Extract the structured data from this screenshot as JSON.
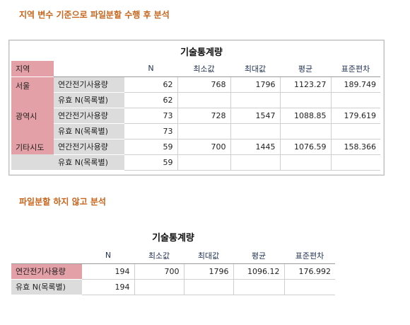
{
  "heading1": "지역 변수 기준으로 파일분할 수행 후 분석",
  "heading2": "파일분할 하지 않고 분석",
  "table1": {
    "title": "기술통계량",
    "region_header": "지역",
    "columns": [
      "N",
      "최소값",
      "최대값",
      "평균",
      "표준편차"
    ],
    "groups": [
      {
        "region": "서울",
        "rows": [
          {
            "label": "연간전기사용량",
            "values": [
              "62",
              "768",
              "1796",
              "1123.27",
              "189.749"
            ]
          },
          {
            "label": "유효 N(목록별)",
            "values": [
              "62",
              "",
              "",
              "",
              ""
            ]
          }
        ]
      },
      {
        "region": "광역시",
        "rows": [
          {
            "label": "연간전기사용량",
            "values": [
              "73",
              "728",
              "1547",
              "1088.85",
              "179.619"
            ]
          },
          {
            "label": "유효 N(목록별)",
            "values": [
              "73",
              "",
              "",
              "",
              ""
            ]
          }
        ]
      },
      {
        "region": "기타시도",
        "rows": [
          {
            "label": "연간전기사용량",
            "values": [
              "59",
              "700",
              "1445",
              "1076.59",
              "158.366"
            ]
          },
          {
            "label": "유효 N(목록별)",
            "values": [
              "59",
              "",
              "",
              "",
              ""
            ]
          }
        ]
      }
    ]
  },
  "table2": {
    "title": "기술통계량",
    "columns": [
      "N",
      "최소값",
      "최대값",
      "평균",
      "표준편차"
    ],
    "rows": [
      {
        "label": "연간전기사용량",
        "values": [
          "194",
          "700",
          "1796",
          "1096.12",
          "176.992"
        ]
      },
      {
        "label": "유효 N(목록별)",
        "values": [
          "194",
          "",
          "",
          "",
          ""
        ]
      }
    ]
  },
  "colors": {
    "heading": "#c8651b",
    "highlight": "#e3a0a6",
    "label_bg": "#dcdcdc"
  }
}
